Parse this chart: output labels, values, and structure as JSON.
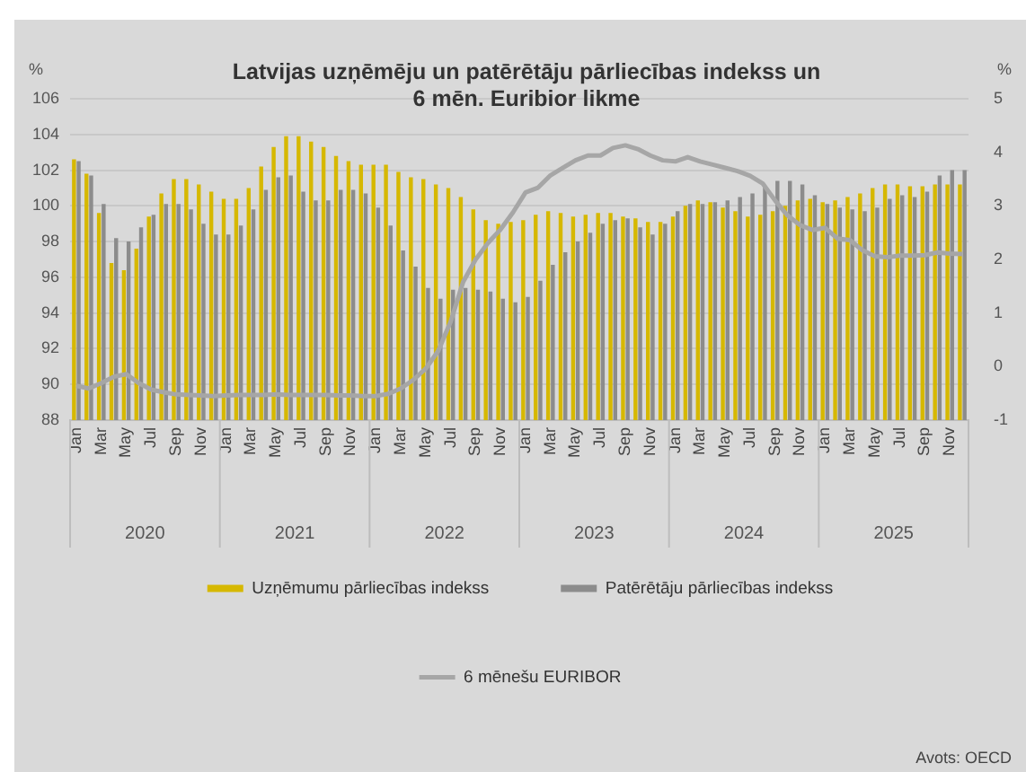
{
  "chart_data": {
    "type": "bar",
    "title": "Latvijas uzņēmēju un patērētāju pārliecības indekss un 6 mēn. Euribior likme",
    "ylabel": "%",
    "y2label": "%",
    "categories": [
      "Jan",
      null,
      "Mar",
      null,
      "May",
      null,
      "Jul",
      null,
      "Sep",
      null,
      "Nov",
      null,
      "Jan",
      null,
      "Mar",
      null,
      "May",
      null,
      "Jul",
      null,
      "Sep",
      null,
      "Nov",
      null,
      "Jan",
      null,
      "Mar",
      null,
      "May",
      null,
      "Jul",
      null,
      "Sep",
      null,
      "Nov",
      null,
      "Jan",
      null,
      "Mar",
      null,
      "May",
      null,
      "Jul",
      null,
      "Sep",
      null,
      "Nov",
      null,
      "Jan",
      null,
      "Mar",
      null,
      "May",
      null,
      "Jul",
      null,
      "Sep",
      null,
      "Nov",
      null,
      "Jan",
      null,
      "Mar",
      null,
      "May",
      null,
      "Jul",
      null,
      "Sep",
      null,
      "Nov",
      null
    ],
    "series": [
      {
        "name": "Uzņēmumu pārliecības indekss",
        "color": "#d6b800",
        "values": [
          102.6,
          101.8,
          99.6,
          96.8,
          96.4,
          97.6,
          99.4,
          100.7,
          101.5,
          101.5,
          101.2,
          100.8,
          100.4,
          100.4,
          101.0,
          102.2,
          103.3,
          103.9,
          103.9,
          103.6,
          103.3,
          102.8,
          102.5,
          102.3,
          102.3,
          102.3,
          101.9,
          101.6,
          101.5,
          101.2,
          101.0,
          100.5,
          99.8,
          99.2,
          99.0,
          99.1,
          99.2,
          99.5,
          99.7,
          99.6,
          99.4,
          99.5,
          99.6,
          99.6,
          99.4,
          99.3,
          99.1,
          99.1,
          99.4,
          100.0,
          100.3,
          100.2,
          99.9,
          99.7,
          99.4,
          99.5,
          99.7,
          100.0,
          100.3,
          100.4,
          100.2,
          100.3,
          100.5,
          100.7,
          101.0,
          101.2,
          101.2,
          101.1,
          101.1,
          101.2,
          101.2,
          101.2
        ]
      },
      {
        "name": "Patērētāju pārliecības indekss",
        "color": "#8c8c8c",
        "values": [
          102.5,
          101.7,
          100.1,
          98.2,
          98.0,
          98.8,
          99.5,
          100.1,
          100.1,
          99.8,
          99.0,
          98.4,
          98.4,
          98.9,
          99.8,
          100.9,
          101.6,
          101.7,
          100.8,
          100.3,
          100.3,
          100.9,
          100.9,
          100.7,
          99.9,
          98.9,
          97.5,
          96.6,
          95.4,
          94.8,
          95.3,
          95.4,
          95.3,
          95.2,
          94.8,
          94.6,
          94.9,
          95.8,
          96.7,
          97.4,
          98.0,
          98.5,
          99.0,
          99.2,
          99.3,
          98.8,
          98.4,
          99.0,
          99.7,
          100.1,
          100.1,
          100.2,
          100.3,
          100.5,
          100.7,
          101.1,
          101.4,
          101.4,
          101.2,
          100.6,
          100.1,
          99.9,
          99.8,
          99.7,
          99.9,
          100.4,
          100.6,
          100.5,
          100.8,
          101.7,
          102.0,
          102.0
        ]
      },
      {
        "name": "6 mēnešu EURIBOR",
        "type": "line",
        "axis": "y2",
        "color": "#a6a6a6",
        "values": [
          -0.36,
          -0.41,
          -0.31,
          -0.19,
          -0.14,
          -0.31,
          -0.43,
          -0.48,
          -0.52,
          -0.53,
          -0.54,
          -0.55,
          -0.54,
          -0.53,
          -0.53,
          -0.53,
          -0.52,
          -0.53,
          -0.53,
          -0.53,
          -0.53,
          -0.54,
          -0.54,
          -0.55,
          -0.55,
          -0.51,
          -0.41,
          -0.25,
          -0.04,
          0.29,
          0.84,
          1.58,
          2.0,
          2.31,
          2.56,
          2.88,
          3.25,
          3.34,
          3.57,
          3.71,
          3.85,
          3.94,
          3.94,
          4.08,
          4.13,
          4.06,
          3.94,
          3.85,
          3.83,
          3.91,
          3.83,
          3.77,
          3.71,
          3.65,
          3.56,
          3.42,
          3.1,
          2.82,
          2.64,
          2.55,
          2.59,
          2.39,
          2.36,
          2.17,
          2.06,
          2.04,
          2.07,
          2.07,
          2.08,
          2.13,
          2.11,
          2.1
        ]
      }
    ],
    "ylim": [
      88,
      106
    ],
    "yticks": [
      88,
      90,
      92,
      94,
      96,
      98,
      100,
      102,
      104,
      106
    ],
    "y2lim": [
      -1,
      5
    ],
    "y2ticks": [
      -1,
      0,
      1,
      2,
      3,
      4,
      5
    ],
    "grid": "y",
    "legend": "bottom",
    "marker": "none",
    "line_style": "solid",
    "annotations": [
      "2020",
      "2021",
      "2022",
      "2023",
      "2024",
      "2025",
      "Avots: OECD"
    ]
  }
}
